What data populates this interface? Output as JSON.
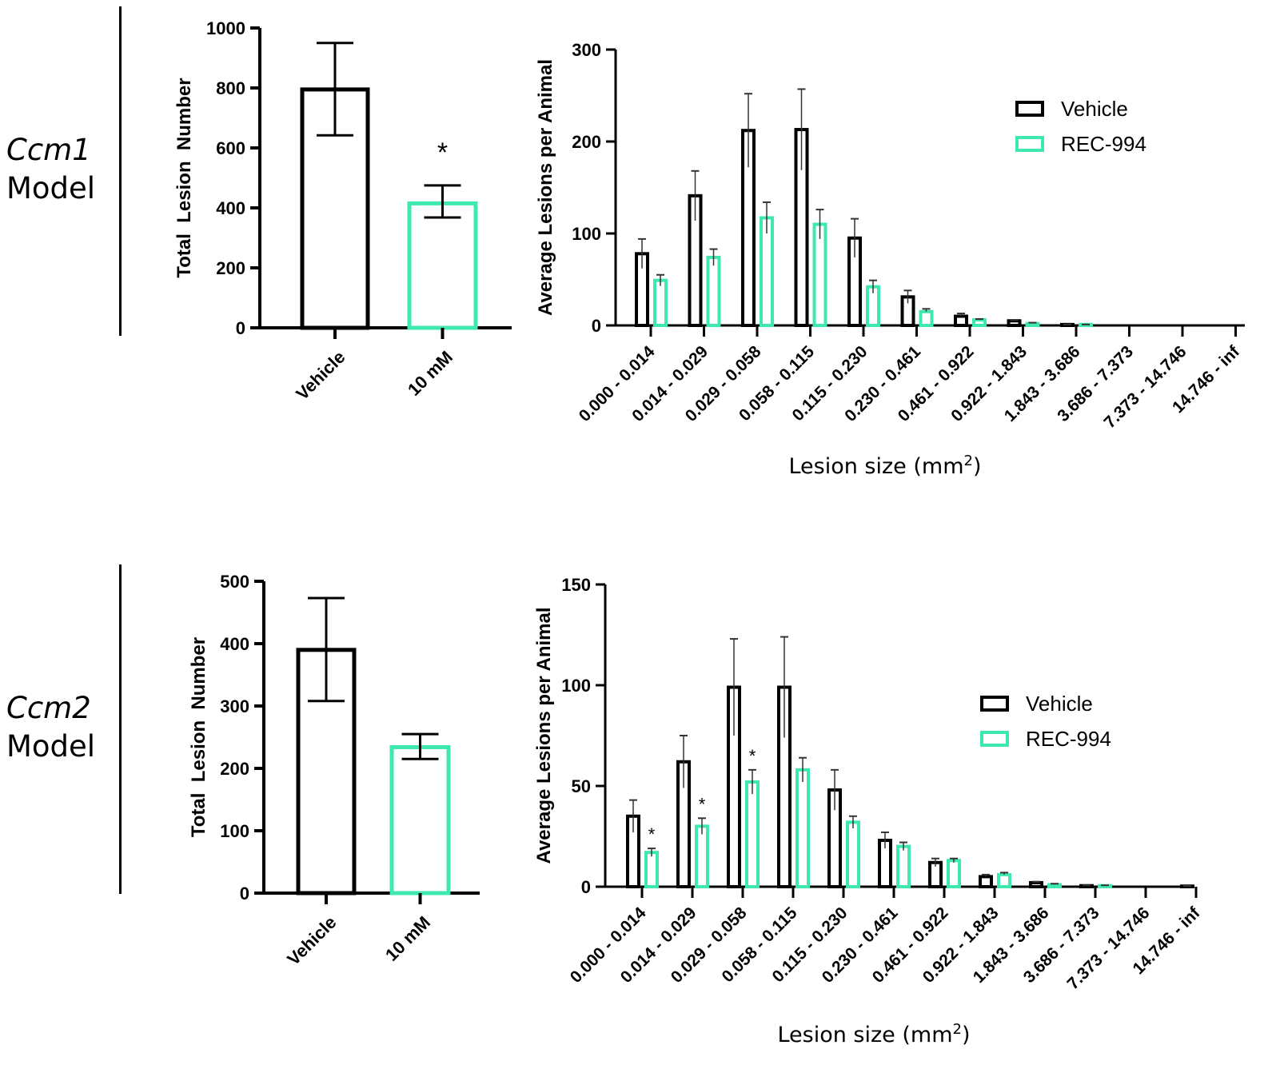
{
  "colors": {
    "vehicle": "#000000",
    "rec994": "#3ee8b0"
  },
  "rows": [
    {
      "model_name": "Ccm1",
      "model_word": "Model"
    },
    {
      "model_name": "Ccm2",
      "model_word": "Model"
    }
  ],
  "chart_data": [
    {
      "type": "bar",
      "ylabel": "Total  Lesion  Number",
      "categories": [
        "Vehicle",
        "10 mM"
      ],
      "values": [
        795,
        415
      ],
      "error_low": [
        642,
        368
      ],
      "error_high": [
        950,
        475
      ],
      "bar_colors": [
        "#000000",
        "#3ee8b0"
      ],
      "ylim": [
        0,
        1000
      ],
      "yticks": [
        0,
        200,
        400,
        600,
        800,
        1000
      ],
      "annotations": [
        {
          "category": "10 mM",
          "text": "*"
        }
      ]
    },
    {
      "type": "bar",
      "xlabel": "Lesion size (mm",
      "xlabel_sup": "2",
      "xlabel_end": ")",
      "ylabel": "Average Lesions per Animal",
      "categories": [
        "0.000 - 0.014",
        "0.014 - 0.029",
        "0.029 - 0.058",
        "0.058 - 0.115",
        "0.115 - 0.230",
        "0.230 - 0.461",
        "0.461 - 0.922",
        "0.922 - 1.843",
        "1.843 - 3.686",
        "3.686 - 7.373",
        "7.373 - 14.746",
        "14.746 - inf"
      ],
      "ylim": [
        0,
        300
      ],
      "yticks": [
        0,
        100,
        200,
        300
      ],
      "legend": "top-right",
      "series": [
        {
          "name": "Vehicle",
          "values": [
            78,
            141,
            212,
            213,
            95,
            31,
            10,
            5,
            1,
            0,
            0,
            0
          ],
          "error_high": [
            94,
            168,
            252,
            257,
            116,
            38,
            13,
            6,
            1,
            0,
            0,
            0
          ]
        },
        {
          "name": "REC-994",
          "values": [
            49,
            74,
            117,
            110,
            42,
            15,
            6,
            2,
            1,
            0,
            0,
            0
          ],
          "error_high": [
            55,
            83,
            134,
            126,
            49,
            18,
            7,
            3,
            1,
            0,
            0,
            0
          ]
        }
      ],
      "annotations": []
    },
    {
      "type": "bar",
      "ylabel": "Total  Lesion  Number",
      "categories": [
        "Vehicle",
        "10 mM"
      ],
      "values": [
        390,
        234
      ],
      "error_low": [
        308,
        215
      ],
      "error_high": [
        473,
        255
      ],
      "bar_colors": [
        "#000000",
        "#3ee8b0"
      ],
      "ylim": [
        0,
        500
      ],
      "yticks": [
        0,
        100,
        200,
        300,
        400,
        500
      ],
      "annotations": []
    },
    {
      "type": "bar",
      "xlabel": "Lesion size (mm",
      "xlabel_sup": "2",
      "xlabel_end": ")",
      "ylabel": "Average Lesions per Animal",
      "categories": [
        "0.000 - 0.014",
        "0.014 - 0.029",
        "0.029 - 0.058",
        "0.058 - 0.115",
        "0.115 - 0.230",
        "0.230 - 0.461",
        "0.461 - 0.922",
        "0.922 - 1.843",
        "1.843 - 3.686",
        "3.686 - 7.373",
        "7.373 - 14.746",
        "14.746 - inf"
      ],
      "ylim": [
        0,
        150
      ],
      "yticks": [
        0,
        50,
        100,
        150
      ],
      "legend": "right",
      "series": [
        {
          "name": "Vehicle",
          "values": [
            35,
            62,
            99,
            99,
            48,
            23,
            12,
            5,
            2,
            0.5,
            0,
            0.3
          ],
          "error_high": [
            43,
            75,
            123,
            124,
            58,
            27,
            14,
            6,
            2.5,
            0.7,
            0,
            0.4
          ]
        },
        {
          "name": "REC-994",
          "values": [
            17,
            30,
            52,
            58,
            32,
            20,
            13,
            6,
            1,
            0.5,
            0,
            0
          ],
          "error_high": [
            19,
            34,
            58,
            64,
            35,
            22,
            14,
            7,
            1.5,
            0.7,
            0,
            0
          ]
        }
      ],
      "annotations": [
        {
          "series": "REC-994",
          "category": "0.000 - 0.014",
          "text": "*"
        },
        {
          "series": "REC-994",
          "category": "0.014 - 0.029",
          "text": "*"
        },
        {
          "series": "REC-994",
          "category": "0.029 - 0.058",
          "text": "*"
        }
      ]
    }
  ]
}
